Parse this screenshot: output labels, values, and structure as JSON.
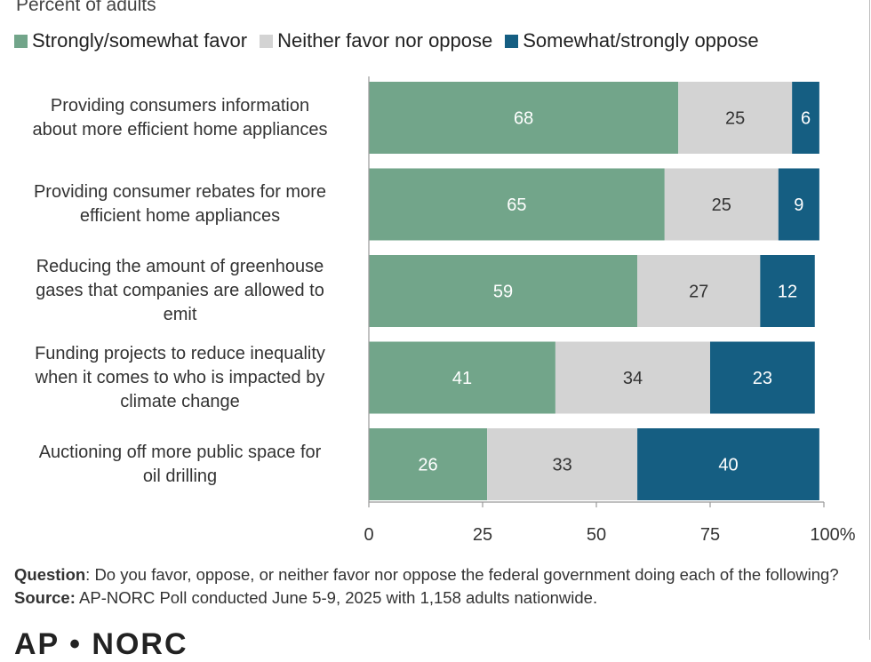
{
  "subtitle": "Percent of adults",
  "legend": [
    {
      "label": "Strongly/somewhat favor",
      "color": "#72a58a"
    },
    {
      "label": "Neither favor nor oppose",
      "color": "#d3d3d3"
    },
    {
      "label": "Somewhat/strongly oppose",
      "color": "#155e82"
    }
  ],
  "chart_data": {
    "type": "bar",
    "orientation": "horizontal",
    "stacked": true,
    "categories": [
      "Providing consumers information about more efficient home appliances",
      "Providing consumer rebates for more efficient home appliances",
      "Reducing the amount of greenhouse gases that companies are allowed to emit",
      "Funding projects to reduce inequality when it comes to who is impacted by climate change",
      "Auctioning off more public space for oil drilling"
    ],
    "category_lines": [
      [
        "Providing consumers information",
        "about more efficient home appliances"
      ],
      [
        "Providing consumer rebates for more",
        "efficient home appliances"
      ],
      [
        "Reducing the amount of greenhouse",
        "gases that companies are allowed to",
        "emit"
      ],
      [
        "Funding projects to reduce inequality",
        "when it comes to who is impacted by",
        "climate change"
      ],
      [
        "Auctioning off more public space for",
        "oil drilling"
      ]
    ],
    "series": [
      {
        "name": "Strongly/somewhat favor",
        "color": "#72a58a",
        "label_color": "#ffffff",
        "values": [
          68,
          65,
          59,
          41,
          26
        ]
      },
      {
        "name": "Neither favor nor oppose",
        "color": "#d3d3d3",
        "label_color": "#333333",
        "values": [
          25,
          25,
          27,
          34,
          33
        ]
      },
      {
        "name": "Somewhat/strongly oppose",
        "color": "#155e82",
        "label_color": "#ffffff",
        "values": [
          6,
          9,
          12,
          23,
          40
        ]
      }
    ],
    "xlim": [
      0,
      100
    ],
    "xticks": [
      "0",
      "25",
      "50",
      "75",
      "100%"
    ],
    "legend_position": "top",
    "grid": false
  },
  "footer": {
    "question_label": "Question",
    "question_text": ": Do you favor, oppose, or neither favor nor oppose the federal government doing each of the following?",
    "source_label": "Source:",
    "source_text": " AP-NORC Poll conducted June 5-9, 2025 with 1,158 adults nationwide."
  },
  "logo": "AP • NORC"
}
